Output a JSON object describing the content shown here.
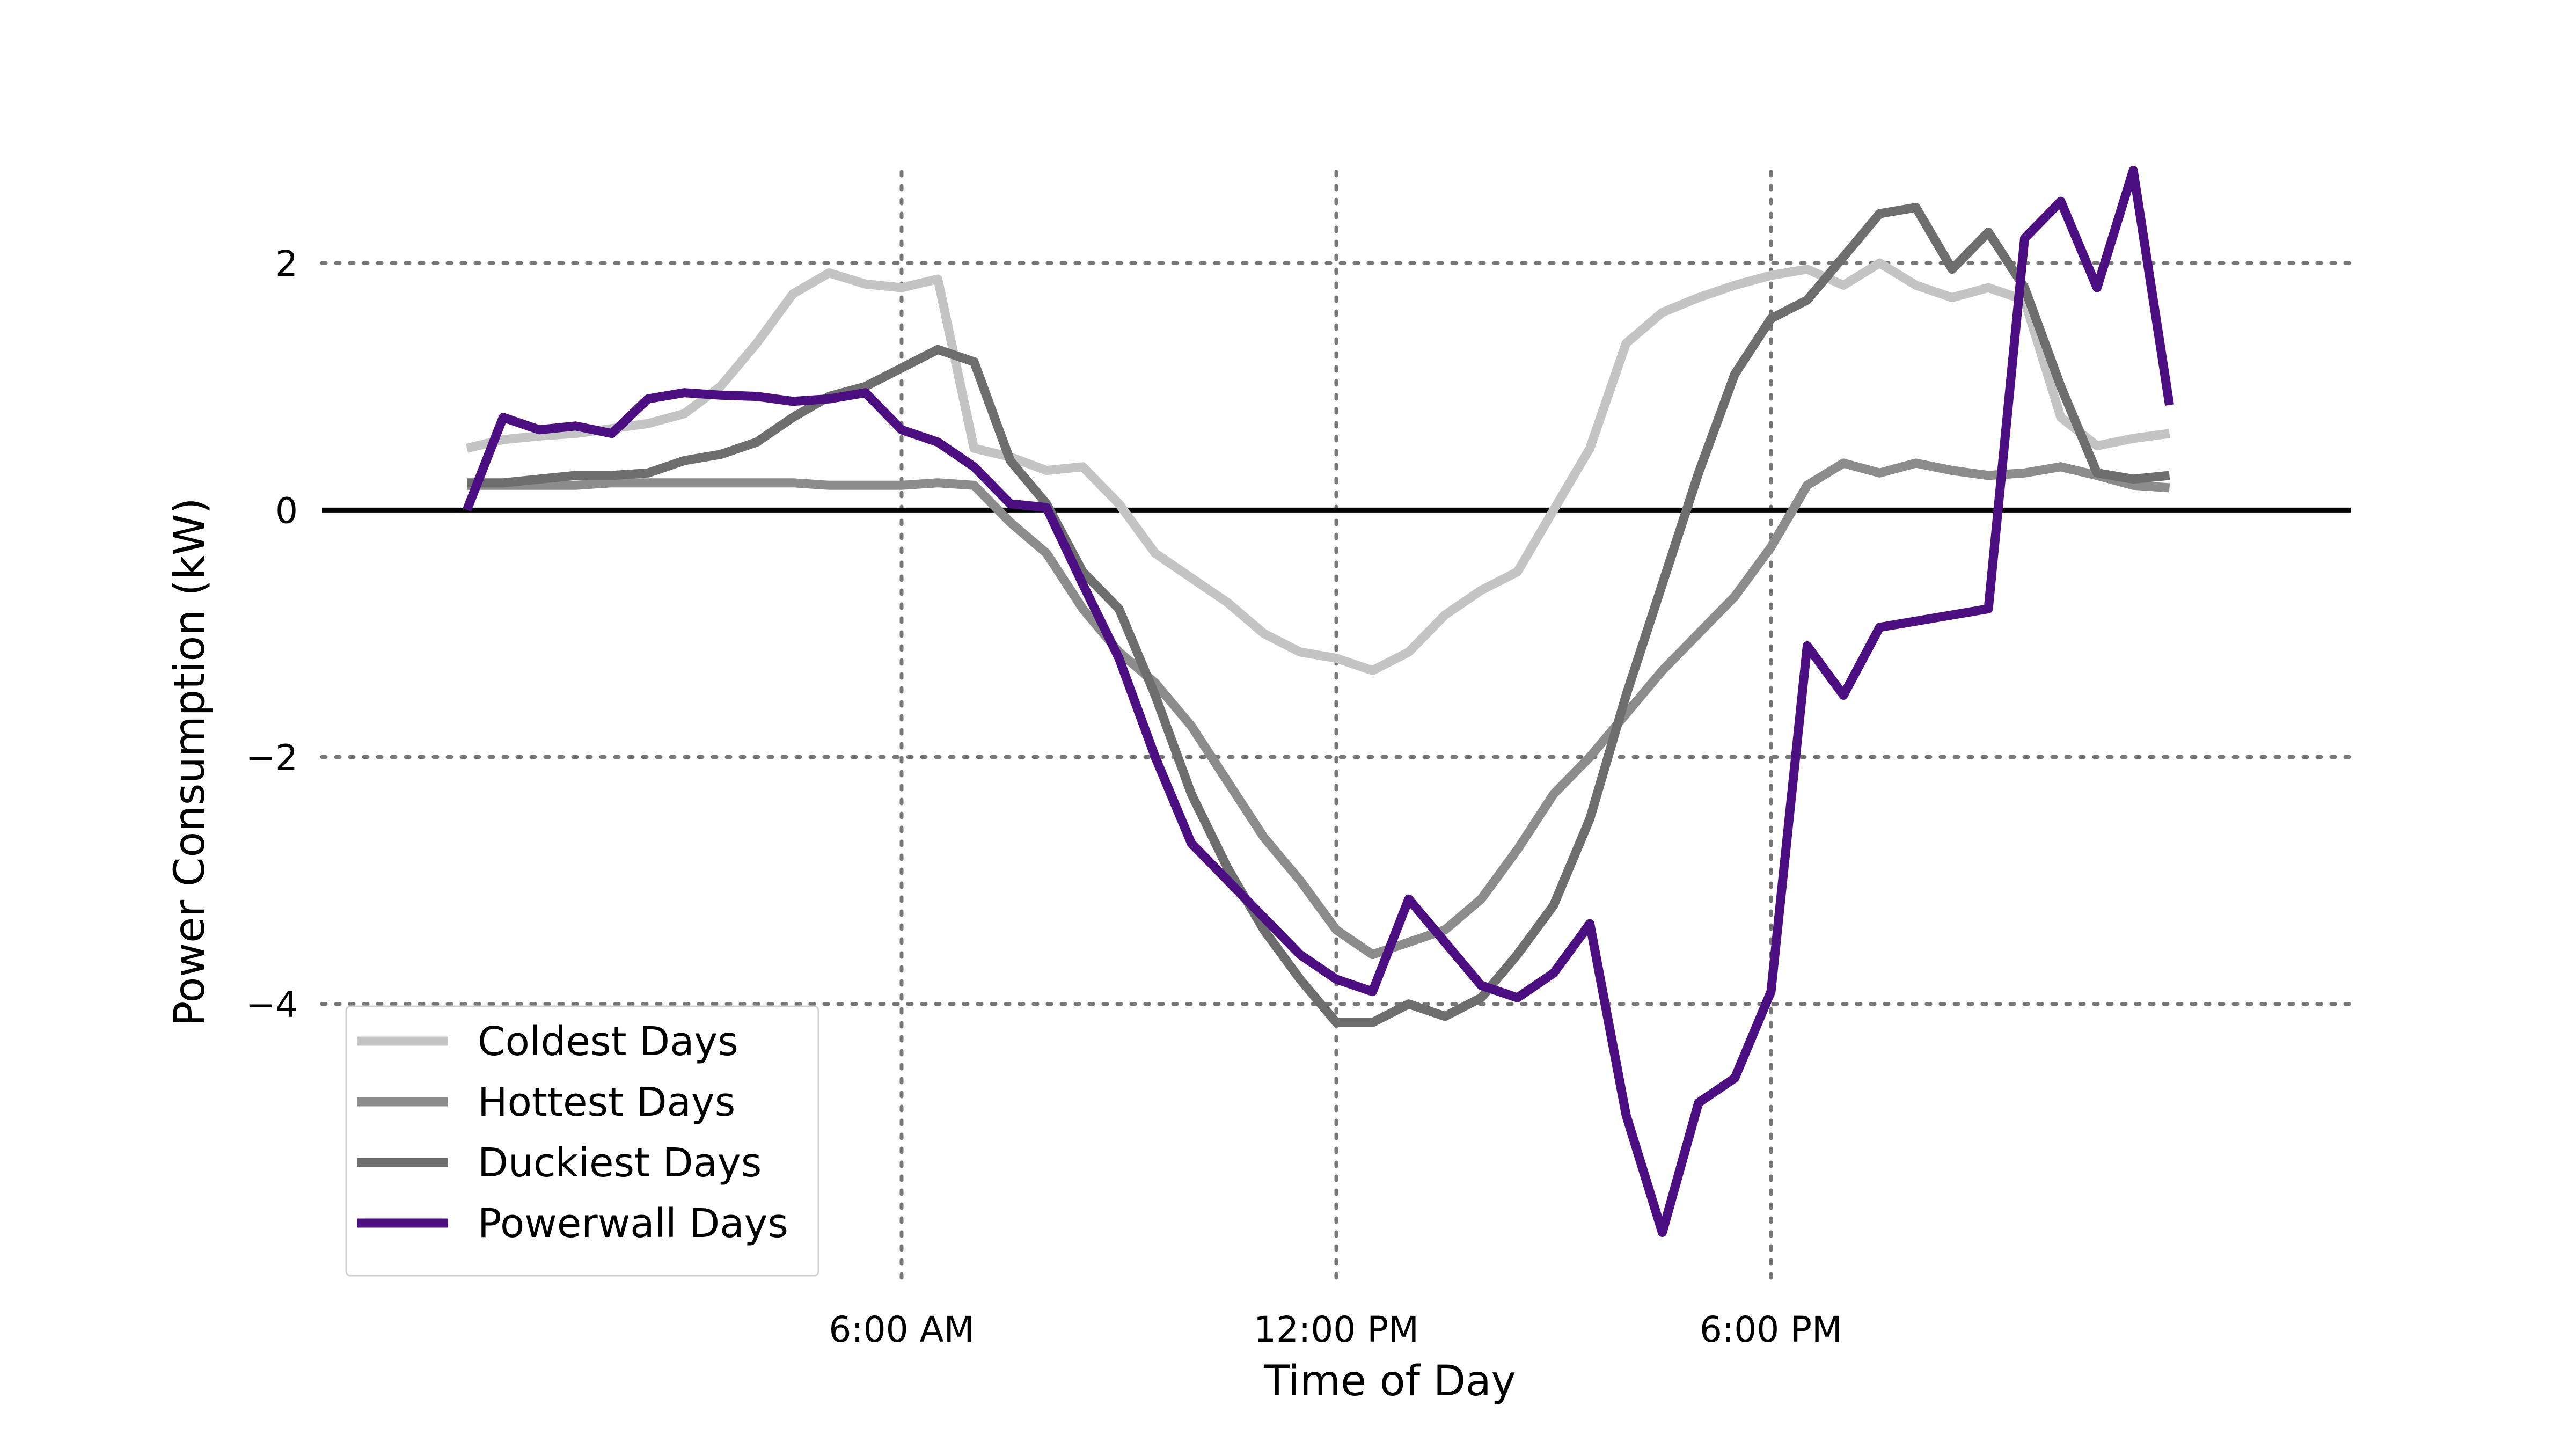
{
  "chart_data": {
    "type": "line",
    "title": "",
    "xlabel": "Time of Day",
    "ylabel": "Power Consumption (kW)",
    "xlim": [
      -2,
      26
    ],
    "ylim": [
      -6.3,
      3.0
    ],
    "x_ticks": [
      {
        "value": 6,
        "label": "6:00 AM"
      },
      {
        "value": 12,
        "label": "12:00 PM"
      },
      {
        "value": 18,
        "label": "6:00 PM"
      }
    ],
    "y_ticks": [
      {
        "value": 2,
        "label": "2"
      },
      {
        "value": 0,
        "label": "0"
      },
      {
        "value": -2,
        "label": "−2"
      },
      {
        "value": -4,
        "label": "−4"
      }
    ],
    "grid": {
      "vertical_at": [
        6,
        12,
        18
      ],
      "horizontal_at": [
        2,
        -2,
        -4
      ],
      "style": "dotted"
    },
    "zero_line": 0,
    "legend_position": "lower-left",
    "series": [
      {
        "name": "Coldest Days",
        "color": "#c4c4c4",
        "x": [
          0,
          0.5,
          1,
          1.5,
          2,
          2.5,
          3,
          3.5,
          4,
          4.5,
          5,
          5.5,
          6,
          6.5,
          7,
          7.5,
          8,
          8.5,
          9,
          9.5,
          10,
          10.5,
          11,
          11.5,
          12,
          12.5,
          13,
          13.5,
          14,
          14.5,
          15,
          15.5,
          16,
          16.5,
          17,
          17.5,
          18,
          18.5,
          19,
          19.5,
          20,
          20.5,
          21,
          21.5,
          22,
          22.5,
          23,
          23.5
        ],
        "y": [
          0.5,
          0.57,
          0.6,
          0.62,
          0.66,
          0.7,
          0.78,
          1.0,
          1.35,
          1.75,
          1.92,
          1.83,
          1.8,
          1.87,
          0.5,
          0.43,
          0.32,
          0.35,
          0.05,
          -0.35,
          -0.55,
          -0.75,
          -1.0,
          -1.15,
          -1.2,
          -1.3,
          -1.15,
          -0.85,
          -0.65,
          -0.5,
          0.0,
          0.5,
          1.35,
          1.6,
          1.72,
          1.82,
          1.9,
          1.95,
          1.82,
          2.0,
          1.82,
          1.72,
          1.8,
          1.7,
          0.75,
          0.52,
          0.58,
          0.62
        ]
      },
      {
        "name": "Hottest Days",
        "color": "#8c8c8c",
        "x": [
          0,
          0.5,
          1,
          1.5,
          2,
          2.5,
          3,
          3.5,
          4,
          4.5,
          5,
          5.5,
          6,
          6.5,
          7,
          7.5,
          8,
          8.5,
          9,
          9.5,
          10,
          10.5,
          11,
          11.5,
          12,
          12.5,
          13,
          13.5,
          14,
          14.5,
          15,
          15.5,
          16,
          16.5,
          17,
          17.5,
          18,
          18.5,
          19,
          19.5,
          20,
          20.5,
          21,
          21.5,
          22,
          22.5,
          23,
          23.5
        ],
        "y": [
          0.2,
          0.2,
          0.2,
          0.2,
          0.22,
          0.22,
          0.22,
          0.22,
          0.22,
          0.22,
          0.2,
          0.2,
          0.2,
          0.22,
          0.2,
          -0.1,
          -0.35,
          -0.8,
          -1.15,
          -1.4,
          -1.75,
          -2.2,
          -2.65,
          -3.0,
          -3.4,
          -3.6,
          -3.5,
          -3.4,
          -3.15,
          -2.75,
          -2.3,
          -2.0,
          -1.65,
          -1.3,
          -1.0,
          -0.7,
          -0.3,
          0.2,
          0.38,
          0.3,
          0.38,
          0.32,
          0.28,
          0.3,
          0.35,
          0.28,
          0.2,
          0.18
        ]
      },
      {
        "name": "Duckiest Days",
        "color": "#6e6e6e",
        "x": [
          0,
          0.5,
          1,
          1.5,
          2,
          2.5,
          3,
          3.5,
          4,
          4.5,
          5,
          5.5,
          6,
          6.5,
          7,
          7.5,
          8,
          8.5,
          9,
          9.5,
          10,
          10.5,
          11,
          11.5,
          12,
          12.5,
          13,
          13.5,
          14,
          14.5,
          15,
          15.5,
          16,
          16.5,
          17,
          17.5,
          18,
          18.5,
          19,
          19.5,
          20,
          20.5,
          21,
          21.5,
          22,
          22.5,
          23,
          23.5
        ],
        "y": [
          0.22,
          0.22,
          0.25,
          0.28,
          0.28,
          0.3,
          0.4,
          0.45,
          0.55,
          0.75,
          0.92,
          1.0,
          1.15,
          1.3,
          1.2,
          0.4,
          0.05,
          -0.5,
          -0.8,
          -1.5,
          -2.3,
          -2.9,
          -3.4,
          -3.8,
          -4.15,
          -4.15,
          -4.0,
          -4.1,
          -3.95,
          -3.6,
          -3.2,
          -2.5,
          -1.5,
          -0.6,
          0.3,
          1.1,
          1.55,
          1.7,
          2.05,
          2.4,
          2.45,
          1.95,
          2.25,
          1.8,
          1.0,
          0.3,
          0.25,
          0.28
        ]
      },
      {
        "name": "Powerwall Days",
        "color": "#4b0f82",
        "x": [
          0,
          0.5,
          1,
          1.5,
          2,
          2.5,
          3,
          3.5,
          4,
          4.5,
          5,
          5.5,
          6,
          6.5,
          7,
          7.5,
          8,
          8.5,
          9,
          9.5,
          10,
          10.5,
          11,
          11.5,
          12,
          12.5,
          13,
          13.5,
          14,
          14.5,
          15,
          15.5,
          16,
          16.5,
          17,
          17.5,
          18,
          18.5,
          19,
          19.5,
          20,
          20.5,
          21,
          21.5,
          22,
          22.5,
          23,
          23.5
        ],
        "y": [
          0.0,
          0.75,
          0.65,
          0.68,
          0.62,
          0.9,
          0.95,
          0.93,
          0.92,
          0.88,
          0.9,
          0.95,
          0.65,
          0.55,
          0.35,
          0.05,
          0.02,
          -0.6,
          -1.2,
          -2.0,
          -2.7,
          -3.0,
          -3.3,
          -3.6,
          -3.8,
          -3.9,
          -3.15,
          -3.5,
          -3.85,
          -3.95,
          -3.75,
          -3.35,
          -4.9,
          -5.85,
          -4.8,
          -4.6,
          -3.9,
          -1.1,
          -1.5,
          -0.95,
          -0.9,
          -0.85,
          -0.8,
          2.2,
          2.5,
          1.8,
          2.75,
          0.85
        ]
      }
    ]
  }
}
